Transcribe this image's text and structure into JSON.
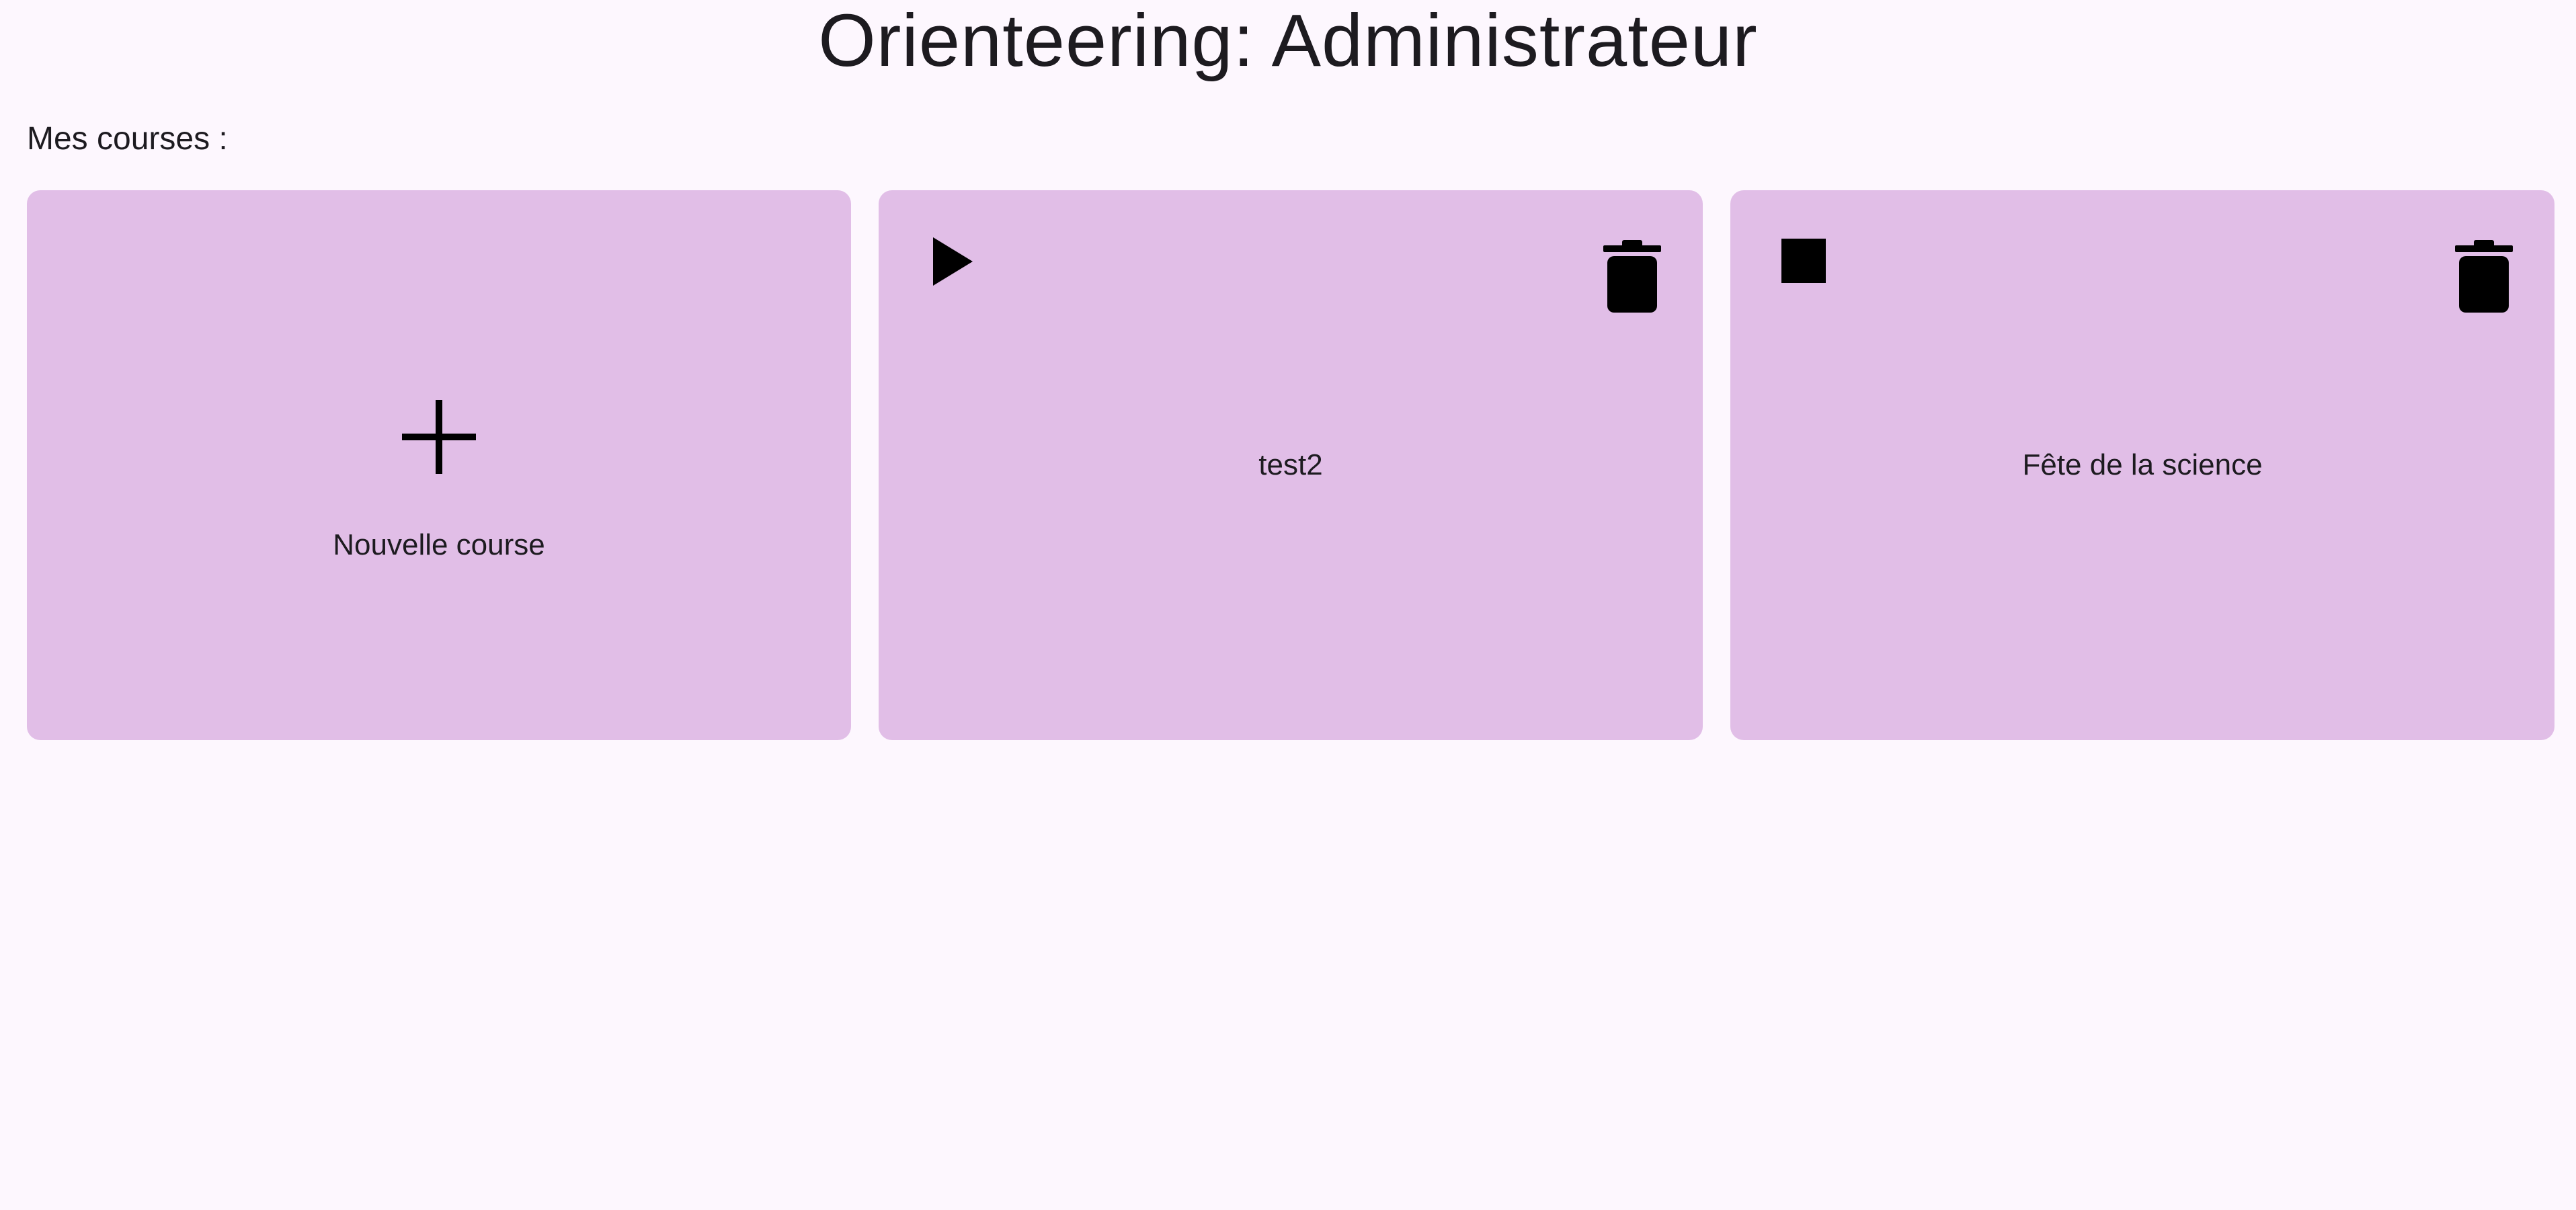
{
  "header": {
    "title": "Orienteering: Administrateur"
  },
  "section": {
    "label": "Mes courses :"
  },
  "cards": [
    {
      "label": "Nouvelle course",
      "icon": "add-icon"
    },
    {
      "label": "test2",
      "status_icon": "play-icon",
      "delete_icon": "delete-icon"
    },
    {
      "label": "Fête de la science",
      "status_icon": "stop-icon",
      "delete_icon": "delete-icon"
    }
  ],
  "colors": {
    "background": "#fdf7fe",
    "card": "#e1bee7",
    "text": "#1d1b20",
    "icon": "#000000"
  }
}
